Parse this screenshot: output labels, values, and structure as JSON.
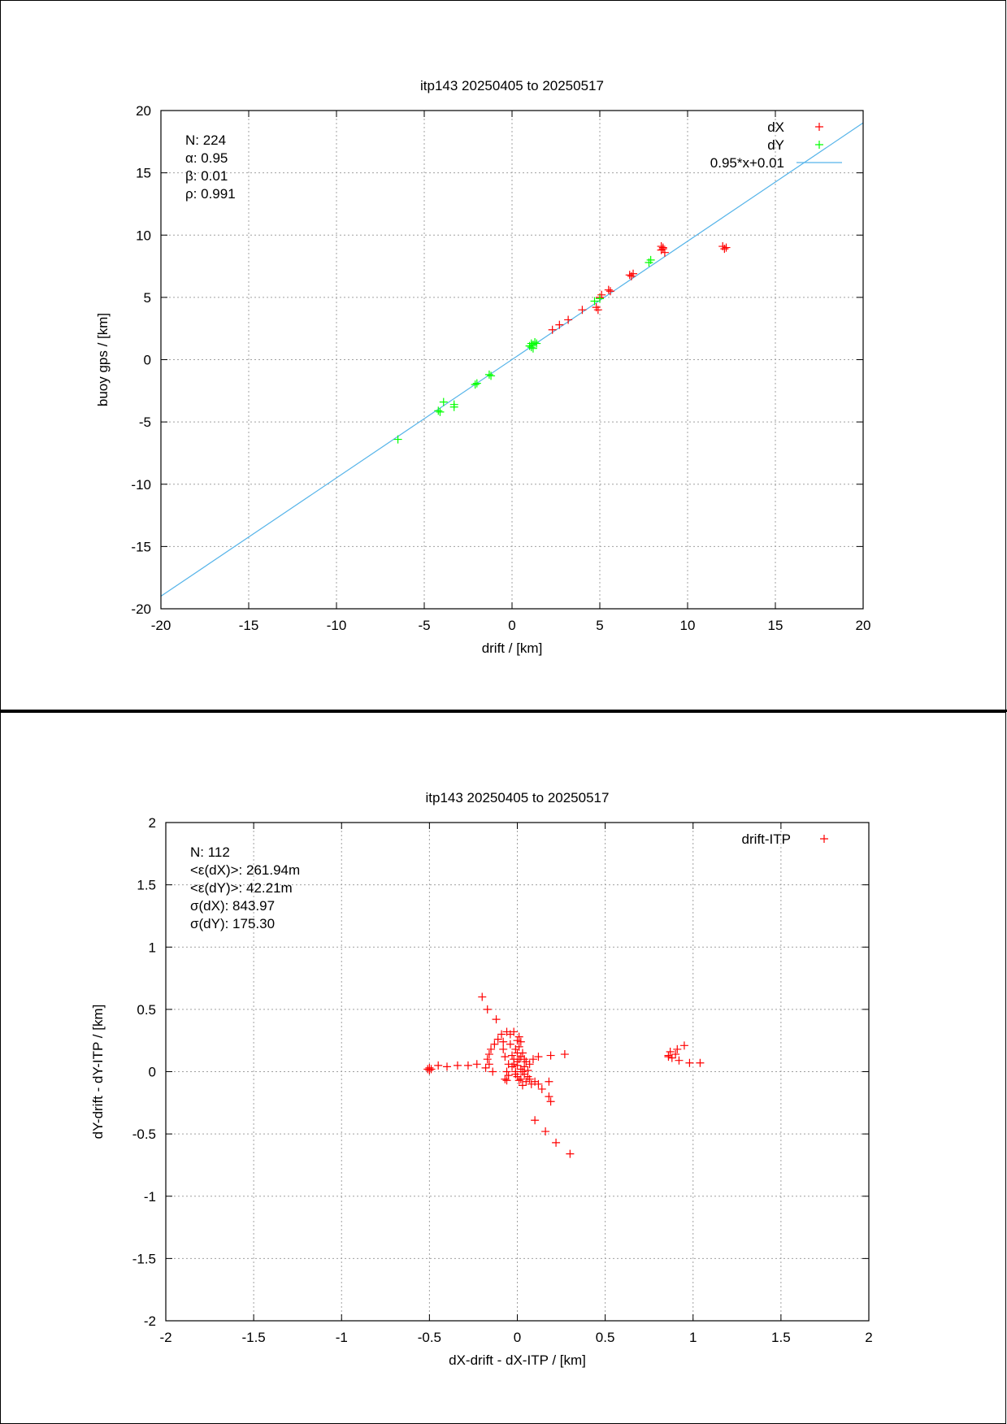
{
  "chart_data": [
    {
      "type": "scatter",
      "title": "itp143 20250405 to 20250517",
      "xlabel": "drift / [km]",
      "ylabel": "buoy gps / [km]",
      "xlim": [
        -20,
        20
      ],
      "ylim": [
        -20,
        20
      ],
      "xticks": [
        "-20",
        "-15",
        "-10",
        "-5",
        "0",
        "5",
        "10",
        "15",
        "20"
      ],
      "yticks": [
        "-20",
        "-15",
        "-10",
        "-5",
        "0",
        "5",
        "10",
        "15",
        "20"
      ],
      "grid": true,
      "legend_position": "top-right",
      "stats": [
        "N: 224",
        "α: 0.95",
        "β: 0.01",
        "ρ: 0.991"
      ],
      "series": [
        {
          "name": "dX",
          "color": "#ff0000",
          "marker": "plus",
          "points": [
            [
              2.3,
              2.4
            ],
            [
              2.7,
              2.8
            ],
            [
              3.2,
              3.2
            ],
            [
              4.0,
              4.0
            ],
            [
              4.9,
              4.0
            ],
            [
              4.8,
              4.2
            ],
            [
              5.0,
              5.0
            ],
            [
              5.1,
              5.2
            ],
            [
              5.6,
              5.5
            ],
            [
              5.5,
              5.6
            ],
            [
              6.8,
              6.7
            ],
            [
              6.7,
              6.8
            ],
            [
              6.9,
              6.9
            ],
            [
              8.5,
              8.8
            ],
            [
              8.5,
              9.1
            ],
            [
              8.6,
              9.0
            ],
            [
              8.7,
              8.6
            ],
            [
              8.6,
              8.9
            ],
            [
              12.1,
              8.9
            ],
            [
              12.0,
              9.1
            ],
            [
              12.2,
              9.0
            ]
          ]
        },
        {
          "name": "dY",
          "color": "#00ff00",
          "marker": "plus",
          "points": [
            [
              -6.5,
              -6.4
            ],
            [
              -4.2,
              -4.1
            ],
            [
              -4.1,
              -4.2
            ],
            [
              -3.9,
              -3.4
            ],
            [
              -3.3,
              -3.6
            ],
            [
              -3.3,
              -3.8
            ],
            [
              -2.1,
              -2.0
            ],
            [
              -2.0,
              -1.9
            ],
            [
              -1.3,
              -1.2
            ],
            [
              -1.2,
              -1.3
            ],
            [
              1.1,
              1.0
            ],
            [
              1.2,
              1.2
            ],
            [
              1.3,
              1.4
            ],
            [
              1.1,
              1.3
            ],
            [
              1.4,
              1.3
            ],
            [
              1.2,
              0.9
            ],
            [
              1.0,
              1.1
            ],
            [
              4.7,
              4.7
            ],
            [
              5.0,
              4.9
            ],
            [
              7.8,
              7.8
            ],
            [
              7.9,
              8.0
            ]
          ]
        }
      ],
      "fit": {
        "name": "0.95*x+0.01",
        "slope": 0.95,
        "intercept": 0.01,
        "color": "#56b4e9"
      }
    },
    {
      "type": "scatter",
      "title": "itp143 20250405 to 20250517",
      "xlabel": "dX-drift - dX-ITP / [km]",
      "ylabel": "dY-drift - dY-ITP / [km]",
      "xlim": [
        -2,
        2
      ],
      "ylim": [
        -2,
        2
      ],
      "xticks": [
        "-2",
        "-1.5",
        "-1",
        "-0.5",
        "0",
        "0.5",
        "1",
        "1.5",
        "2"
      ],
      "yticks": [
        "-2",
        "-1.5",
        "-1",
        "-0.5",
        "0",
        "0.5",
        "1",
        "1.5",
        "2"
      ],
      "grid": true,
      "legend_position": "top-right",
      "stats": [
        "N: 112",
        "<ε(dX)>:  261.94m",
        "<ε(dY)>: 42.21m",
        "σ(dX):  843.97",
        "σ(dY):  175.30"
      ],
      "series": [
        {
          "name": "drift-ITP",
          "color": "#ff0000",
          "marker": "plus",
          "points": [
            [
              -0.2,
              0.6
            ],
            [
              -0.17,
              0.5
            ],
            [
              -0.12,
              0.42
            ],
            [
              -0.06,
              0.32
            ],
            [
              -0.04,
              0.3
            ],
            [
              -0.02,
              0.32
            ],
            [
              -0.09,
              0.3
            ],
            [
              -0.11,
              0.26
            ],
            [
              -0.13,
              0.22
            ],
            [
              -0.15,
              0.18
            ],
            [
              -0.16,
              0.14
            ],
            [
              -0.17,
              0.1
            ],
            [
              -0.16,
              0.06
            ],
            [
              -0.18,
              0.03
            ],
            [
              -0.14,
              0.0
            ],
            [
              -0.08,
              0.24
            ],
            [
              -0.08,
              0.18
            ],
            [
              -0.07,
              0.12
            ],
            [
              -0.05,
              0.06
            ],
            [
              -0.06,
              0.0
            ],
            [
              -0.07,
              -0.06
            ],
            [
              -0.06,
              -0.07
            ],
            [
              -0.05,
              -0.03
            ],
            [
              0.0,
              0.25
            ],
            [
              0.01,
              0.2
            ],
            [
              0.02,
              0.24
            ],
            [
              0.03,
              0.15
            ],
            [
              0.01,
              0.1
            ],
            [
              0.0,
              0.05
            ],
            [
              0.02,
              0.02
            ],
            [
              -0.01,
              -0.02
            ],
            [
              0.0,
              0.08
            ],
            [
              -0.02,
              0.1
            ],
            [
              -0.03,
              0.13
            ],
            [
              -0.02,
              0.06
            ],
            [
              0.03,
              0.0
            ],
            [
              0.04,
              0.04
            ],
            [
              0.05,
              0.08
            ],
            [
              0.06,
              -0.04
            ],
            [
              0.05,
              -0.08
            ],
            [
              0.08,
              -0.1
            ],
            [
              0.1,
              -0.08
            ],
            [
              0.07,
              -0.06
            ],
            [
              0.04,
              -0.02
            ],
            [
              0.02,
              -0.06
            ],
            [
              0.0,
              -0.04
            ],
            [
              0.07,
              0.06
            ],
            [
              0.09,
              0.1
            ],
            [
              0.12,
              0.12
            ],
            [
              0.19,
              0.13
            ],
            [
              0.27,
              0.14
            ],
            [
              0.12,
              -0.1
            ],
            [
              0.14,
              -0.14
            ],
            [
              0.18,
              -0.08
            ],
            [
              0.18,
              -0.2
            ],
            [
              0.19,
              -0.24
            ],
            [
              0.1,
              -0.39
            ],
            [
              0.16,
              -0.48
            ],
            [
              0.22,
              -0.57
            ],
            [
              0.3,
              -0.66
            ],
            [
              -0.23,
              0.06
            ],
            [
              -0.28,
              0.05
            ],
            [
              -0.34,
              0.05
            ],
            [
              -0.4,
              0.04
            ],
            [
              -0.45,
              0.05
            ],
            [
              -0.5,
              0.03
            ],
            [
              -0.51,
              0.02
            ],
            [
              -0.49,
              0.02
            ],
            [
              -0.5,
              0.01
            ],
            [
              0.86,
              0.13
            ],
            [
              0.87,
              0.16
            ],
            [
              0.88,
              0.11
            ],
            [
              0.9,
              0.14
            ],
            [
              0.91,
              0.18
            ],
            [
              0.92,
              0.09
            ],
            [
              0.95,
              0.21
            ],
            [
              0.98,
              0.07
            ],
            [
              1.04,
              0.07
            ],
            [
              0.86,
              0.12
            ],
            [
              -0.01,
              0.18
            ],
            [
              0.01,
              0.28
            ],
            [
              -0.04,
              0.22
            ],
            [
              0.02,
              0.12
            ],
            [
              0.04,
              0.1
            ],
            [
              -0.01,
              0.0
            ],
            [
              0.01,
              -0.07
            ],
            [
              0.03,
              -0.11
            ],
            [
              0.06,
              0.01
            ],
            [
              -0.03,
              0.04
            ],
            [
              0.0,
              0.15
            ]
          ]
        }
      ]
    }
  ]
}
